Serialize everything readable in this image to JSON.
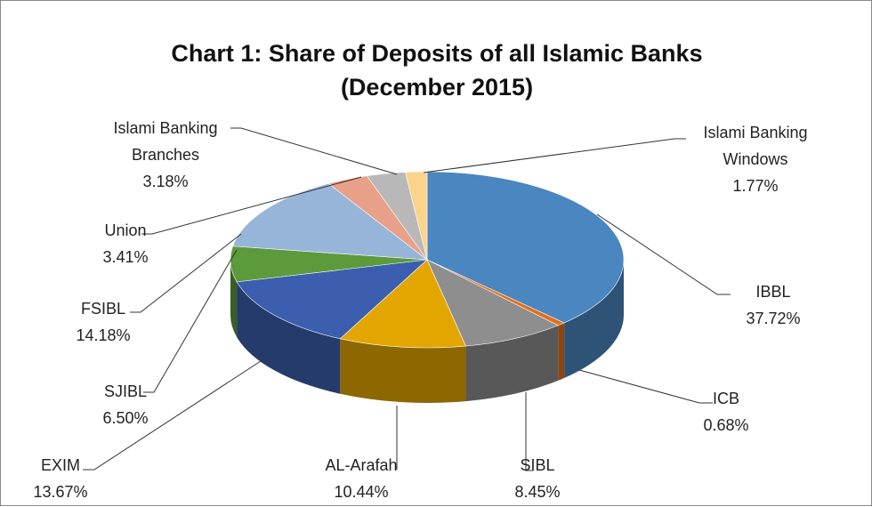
{
  "chart_data": {
    "type": "pie3d",
    "title": "Chart 1: Share of Deposits of all Islamic Banks (December 2015)",
    "categories": [
      "IBBL",
      "ICB",
      "SIBL",
      "AL-Arafah",
      "EXIM",
      "SJIBL",
      "FSIBL",
      "Union",
      "Islami Banking Branches",
      "Islami Banking Windows"
    ],
    "values": [
      37.72,
      0.68,
      8.45,
      10.44,
      13.67,
      6.5,
      14.18,
      3.41,
      3.18,
      1.77
    ],
    "value_labels": [
      "37.72%",
      "0.68%",
      "8.45%",
      "10.44%",
      "13.67%",
      "6.50%",
      "14.18%",
      "3.41%",
      "3.18%",
      "1.77%"
    ],
    "colors": [
      "#4a86c0",
      "#e0701c",
      "#8e8e8e",
      "#e3a600",
      "#3b5fae",
      "#5c9a3c",
      "#97b5d9",
      "#e8a088",
      "#b8b8b8",
      "#fbd38a"
    ]
  }
}
